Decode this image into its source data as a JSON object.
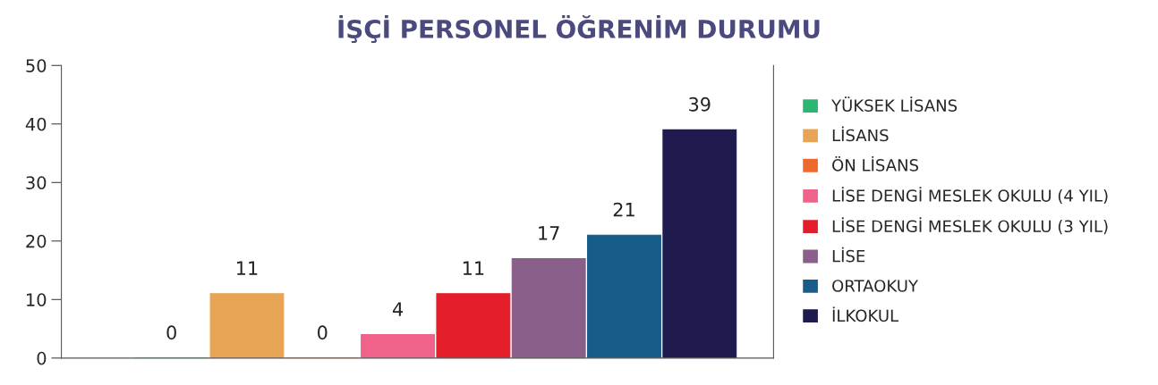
{
  "chart_data": {
    "type": "bar",
    "title": "İŞÇİ PERSONEL ÖĞRENİM DURUMU",
    "categories": [
      null
    ],
    "series": [
      {
        "name": "YÜKSEK LİSANS",
        "color": "#2bb673",
        "values": [
          0
        ]
      },
      {
        "name": "LİSANS",
        "color": "#e8a455",
        "values": [
          11
        ]
      },
      {
        "name": "ÖN LİSANS",
        "color": "#ee6a2c",
        "values": [
          0
        ]
      },
      {
        "name": "LİSE DENGİ MESLEK OKULU (4 YIL)",
        "color": "#f0628a",
        "values": [
          4
        ]
      },
      {
        "name": "LİSE DENGİ MESLEK OKULU (3 YIL)",
        "color": "#e31e2a",
        "values": [
          11
        ]
      },
      {
        "name": "LİSE",
        "color": "#8a5f8a",
        "values": [
          17
        ]
      },
      {
        "name": "ORTAOKUY",
        "color": "#165d8a",
        "values": [
          21
        ]
      },
      {
        "name": "İLKOKUL",
        "color": "#1f1b4f",
        "values": [
          39
        ]
      }
    ],
    "ylim": [
      0,
      50
    ],
    "yticks": [
      0,
      10,
      20,
      30,
      40,
      50
    ],
    "data_labels": true,
    "grid": false,
    "legend": "right"
  }
}
